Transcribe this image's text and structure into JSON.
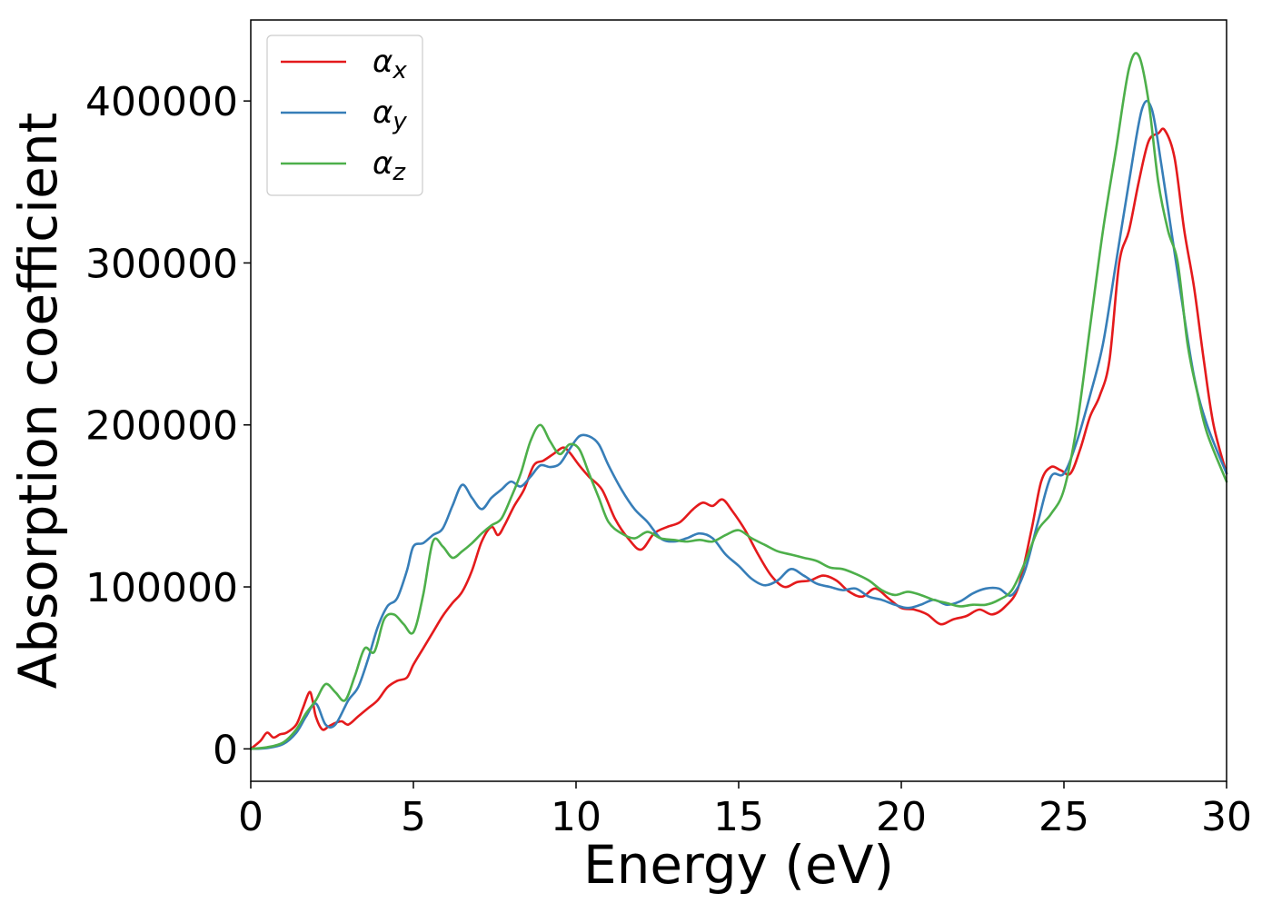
{
  "chart_data": {
    "type": "line",
    "title": "",
    "xlabel": "Energy (eV)",
    "ylabel": "Absorption coefficient",
    "xlim": [
      0,
      30
    ],
    "ylim": [
      -20000,
      450000
    ],
    "xticks": [
      0,
      5,
      10,
      15,
      20,
      25,
      30
    ],
    "yticks": [
      0,
      100000,
      200000,
      300000,
      400000
    ],
    "grid": false,
    "legend_position": "top-left",
    "series": [
      {
        "name": "α_x",
        "name_base": "α",
        "name_sub": "x",
        "color": "#e41a1c",
        "x": [
          0,
          0.3,
          0.5,
          0.7,
          0.9,
          1.1,
          1.4,
          1.6,
          1.8,
          1.9,
          2.0,
          2.2,
          2.4,
          2.6,
          2.8,
          3.0,
          3.3,
          3.6,
          3.9,
          4.2,
          4.5,
          4.8,
          5.0,
          5.3,
          5.6,
          5.9,
          6.2,
          6.5,
          6.8,
          7.1,
          7.4,
          7.6,
          7.8,
          8.1,
          8.4,
          8.7,
          9.0,
          9.3,
          9.6,
          9.8,
          10.1,
          10.4,
          10.8,
          11.2,
          11.6,
          12.0,
          12.4,
          12.8,
          13.2,
          13.6,
          13.9,
          14.2,
          14.5,
          14.8,
          15.2,
          15.6,
          16.0,
          16.4,
          16.8,
          17.2,
          17.6,
          18.0,
          18.4,
          18.8,
          19.2,
          19.6,
          20.0,
          20.4,
          20.8,
          21.2,
          21.6,
          22.0,
          22.4,
          22.8,
          23.2,
          23.6,
          24.0,
          24.3,
          24.6,
          24.9,
          25.2,
          25.5,
          25.8,
          26.1,
          26.4,
          26.7,
          27.0,
          27.3,
          27.6,
          27.9,
          28.1,
          28.4,
          28.7,
          29.0,
          29.3,
          29.6,
          30.0
        ],
        "y": [
          0,
          5000,
          10000,
          7000,
          9000,
          10000,
          15000,
          25000,
          35000,
          30000,
          20000,
          12000,
          14000,
          16000,
          17000,
          15000,
          20000,
          25000,
          30000,
          38000,
          42000,
          44000,
          52000,
          62000,
          72000,
          82000,
          90000,
          97000,
          110000,
          128000,
          137000,
          132000,
          138000,
          150000,
          160000,
          175000,
          178000,
          182000,
          186000,
          183000,
          175000,
          168000,
          160000,
          142000,
          130000,
          123000,
          133000,
          137000,
          140000,
          148000,
          152000,
          150000,
          154000,
          147000,
          135000,
          120000,
          107000,
          100000,
          103000,
          104000,
          107000,
          104000,
          97000,
          94000,
          99000,
          93000,
          87000,
          86000,
          83000,
          77000,
          80000,
          82000,
          86000,
          83000,
          88000,
          100000,
          135000,
          165000,
          174000,
          172000,
          170000,
          185000,
          205000,
          218000,
          240000,
          300000,
          320000,
          350000,
          375000,
          380000,
          382000,
          365000,
          320000,
          285000,
          240000,
          200000,
          170000
        ]
      },
      {
        "name": "α_y",
        "name_base": "α",
        "name_sub": "y",
        "color": "#377eb8",
        "x": [
          0,
          0.5,
          1.0,
          1.4,
          1.7,
          2.0,
          2.3,
          2.6,
          3.0,
          3.3,
          3.6,
          3.9,
          4.2,
          4.5,
          4.8,
          5.0,
          5.3,
          5.6,
          5.9,
          6.2,
          6.5,
          6.8,
          7.1,
          7.4,
          7.7,
          8.0,
          8.3,
          8.6,
          8.9,
          9.2,
          9.5,
          9.8,
          10.1,
          10.4,
          10.7,
          11.0,
          11.4,
          11.8,
          12.2,
          12.6,
          13.0,
          13.4,
          13.8,
          14.2,
          14.6,
          15.0,
          15.4,
          15.8,
          16.2,
          16.6,
          17.0,
          17.4,
          17.8,
          18.2,
          18.6,
          19.0,
          19.4,
          19.8,
          20.2,
          20.6,
          21.0,
          21.4,
          21.8,
          22.2,
          22.6,
          23.0,
          23.4,
          23.8,
          24.2,
          24.6,
          25.0,
          25.4,
          25.8,
          26.2,
          26.6,
          27.0,
          27.4,
          27.7,
          28.0,
          28.3,
          28.6,
          29.0,
          29.4,
          30.0
        ],
        "y": [
          0,
          500,
          3000,
          10000,
          20000,
          28000,
          15000,
          15000,
          30000,
          38000,
          55000,
          75000,
          88000,
          93000,
          110000,
          125000,
          127000,
          132000,
          136000,
          150000,
          163000,
          155000,
          148000,
          155000,
          160000,
          165000,
          162000,
          168000,
          175000,
          174000,
          176000,
          185000,
          193000,
          193000,
          188000,
          175000,
          160000,
          148000,
          140000,
          130000,
          128000,
          130000,
          133000,
          130000,
          120000,
          113000,
          105000,
          101000,
          104000,
          111000,
          107000,
          102000,
          100000,
          98000,
          99000,
          94000,
          92000,
          89000,
          87000,
          89000,
          92000,
          89000,
          91000,
          96000,
          99000,
          99000,
          95000,
          110000,
          140000,
          168000,
          170000,
          190000,
          218000,
          250000,
          300000,
          350000,
          395000,
          395000,
          360000,
          320000,
          280000,
          230000,
          200000,
          170000
        ]
      },
      {
        "name": "α_z",
        "name_base": "α",
        "name_sub": "z",
        "color": "#4daf4a",
        "x": [
          0,
          0.5,
          1.0,
          1.4,
          1.7,
          2.0,
          2.3,
          2.6,
          2.9,
          3.2,
          3.5,
          3.8,
          4.1,
          4.4,
          4.7,
          5.0,
          5.3,
          5.6,
          5.9,
          6.2,
          6.5,
          6.8,
          7.1,
          7.4,
          7.7,
          8.0,
          8.3,
          8.6,
          8.9,
          9.2,
          9.5,
          9.8,
          10.1,
          10.4,
          10.7,
          11.0,
          11.4,
          11.8,
          12.2,
          12.6,
          13.0,
          13.4,
          13.8,
          14.2,
          14.6,
          15.0,
          15.4,
          15.8,
          16.2,
          16.6,
          17.0,
          17.4,
          17.8,
          18.2,
          18.6,
          19.0,
          19.4,
          19.8,
          20.2,
          20.6,
          21.0,
          21.4,
          21.8,
          22.2,
          22.6,
          23.0,
          23.4,
          23.8,
          24.2,
          24.6,
          25.0,
          25.4,
          25.8,
          26.2,
          26.6,
          27.0,
          27.3,
          27.6,
          27.9,
          28.2,
          28.5,
          28.8,
          29.1,
          29.4,
          30.0
        ],
        "y": [
          0,
          1000,
          4000,
          12000,
          22000,
          30000,
          40000,
          35000,
          30000,
          45000,
          62000,
          60000,
          80000,
          83000,
          77000,
          72000,
          95000,
          128000,
          125000,
          118000,
          122000,
          127000,
          133000,
          138000,
          142000,
          155000,
          170000,
          190000,
          200000,
          190000,
          182000,
          188000,
          185000,
          170000,
          155000,
          140000,
          133000,
          130000,
          134000,
          130000,
          129000,
          128000,
          129000,
          128000,
          132000,
          135000,
          130000,
          126000,
          122000,
          120000,
          118000,
          116000,
          112000,
          111000,
          108000,
          104000,
          98000,
          95000,
          97000,
          95000,
          92000,
          90000,
          88000,
          89000,
          89000,
          92000,
          98000,
          115000,
          135000,
          145000,
          160000,
          200000,
          260000,
          320000,
          370000,
          420000,
          428000,
          400000,
          350000,
          320000,
          300000,
          250000,
          220000,
          195000,
          165000
        ]
      }
    ]
  }
}
